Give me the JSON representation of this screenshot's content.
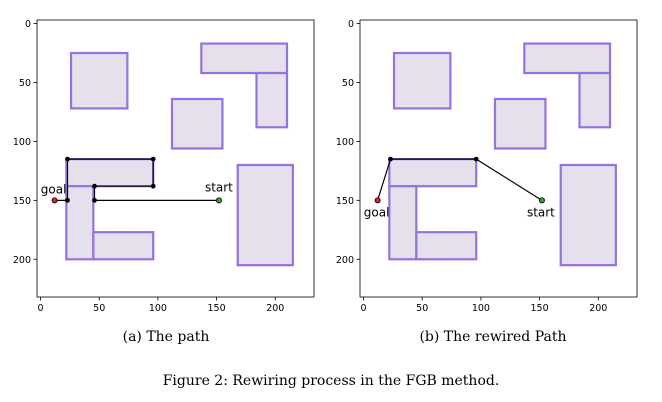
{
  "figure": {
    "caption": "Figure 2: Rewiring process in the FGB method.",
    "panels": [
      {
        "caption": "(a) The path"
      },
      {
        "caption": "(b) The rewired Path"
      }
    ]
  },
  "chart_data": [
    {
      "type": "scatter",
      "subcaption": "(a) The path",
      "x_ticks": [
        0,
        50,
        100,
        150,
        200
      ],
      "y_ticks": [
        0,
        50,
        100,
        150,
        200
      ],
      "xlim": [
        -3,
        233
      ],
      "ylim": [
        232,
        -3
      ],
      "y_inverted": true,
      "obstacles": [
        {
          "x0": 26,
          "y0": 25,
          "x1": 74,
          "y1": 72
        },
        {
          "x0": 137,
          "y0": 17,
          "x1": 210,
          "y1": 42
        },
        {
          "x0": 184,
          "y0": 42,
          "x1": 210,
          "y1": 88
        },
        {
          "x0": 112,
          "y0": 64,
          "x1": 155,
          "y1": 106
        },
        {
          "x0": 168,
          "y0": 120,
          "x1": 215,
          "y1": 205
        },
        {
          "x0": 22,
          "y0": 115,
          "x1": 96,
          "y1": 138
        },
        {
          "x0": 22,
          "y0": 138,
          "x1": 45,
          "y1": 200
        },
        {
          "x0": 45,
          "y0": 177,
          "x1": 96,
          "y1": 200
        }
      ],
      "path": [
        [
          12,
          150
        ],
        [
          23,
          150
        ],
        [
          23,
          115
        ],
        [
          96,
          115
        ],
        [
          96,
          138
        ],
        [
          46,
          138
        ],
        [
          46,
          150
        ],
        [
          152,
          150
        ]
      ],
      "goal": {
        "label": "goal",
        "x": 12,
        "y": 150
      },
      "start": {
        "label": "start",
        "x": 152,
        "y": 150
      }
    },
    {
      "type": "scatter",
      "subcaption": "(b) The rewired Path",
      "x_ticks": [
        0,
        50,
        100,
        150,
        200
      ],
      "y_ticks": [
        0,
        50,
        100,
        150,
        200
      ],
      "xlim": [
        -3,
        233
      ],
      "ylim": [
        232,
        -3
      ],
      "y_inverted": true,
      "obstacles": [
        {
          "x0": 26,
          "y0": 25,
          "x1": 74,
          "y1": 72
        },
        {
          "x0": 137,
          "y0": 17,
          "x1": 210,
          "y1": 42
        },
        {
          "x0": 184,
          "y0": 42,
          "x1": 210,
          "y1": 88
        },
        {
          "x0": 112,
          "y0": 64,
          "x1": 155,
          "y1": 106
        },
        {
          "x0": 168,
          "y0": 120,
          "x1": 215,
          "y1": 205
        },
        {
          "x0": 22,
          "y0": 115,
          "x1": 96,
          "y1": 138
        },
        {
          "x0": 22,
          "y0": 138,
          "x1": 45,
          "y1": 200
        },
        {
          "x0": 45,
          "y0": 177,
          "x1": 96,
          "y1": 200
        }
      ],
      "path": [
        [
          12,
          150
        ],
        [
          23,
          115
        ],
        [
          96,
          115
        ],
        [
          152,
          150
        ]
      ],
      "goal": {
        "label": "goal",
        "x": 12,
        "y": 150
      },
      "start": {
        "label": "start",
        "x": 152,
        "y": 150
      }
    }
  ]
}
